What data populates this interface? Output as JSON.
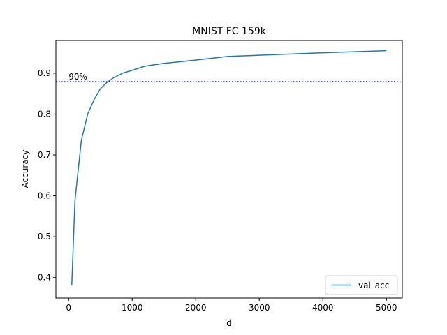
{
  "chart_data": {
    "type": "line",
    "title": "MNIST FC 159k",
    "xlabel": "d",
    "ylabel": "Accuracy",
    "xlim": [
      -200,
      5250
    ],
    "ylim": [
      0.35,
      0.98
    ],
    "xticks": [
      0,
      1000,
      2000,
      3000,
      4000,
      5000
    ],
    "yticks": [
      0.4,
      0.5,
      0.6,
      0.7,
      0.8,
      0.9
    ],
    "ytick_labels": [
      "0.4",
      "0.5",
      "0.6",
      "0.7",
      "0.8",
      "0.9"
    ],
    "grid": false,
    "legend_position": "lower-right",
    "series": [
      {
        "name": "val_acc",
        "color": "#1f77b4",
        "x": [
          50,
          100,
          200,
          300,
          400,
          500,
          600,
          700,
          850,
          1000,
          1200,
          1500,
          2000,
          2500,
          3000,
          4000,
          5000
        ],
        "y": [
          0.382,
          0.588,
          0.735,
          0.8,
          0.835,
          0.862,
          0.877,
          0.888,
          0.9,
          0.907,
          0.917,
          0.924,
          0.932,
          0.941,
          0.944,
          0.95,
          0.955
        ]
      }
    ],
    "reference_line": {
      "y": 0.879,
      "label": "90%",
      "color": "#0000ff",
      "style": "dotted"
    }
  }
}
